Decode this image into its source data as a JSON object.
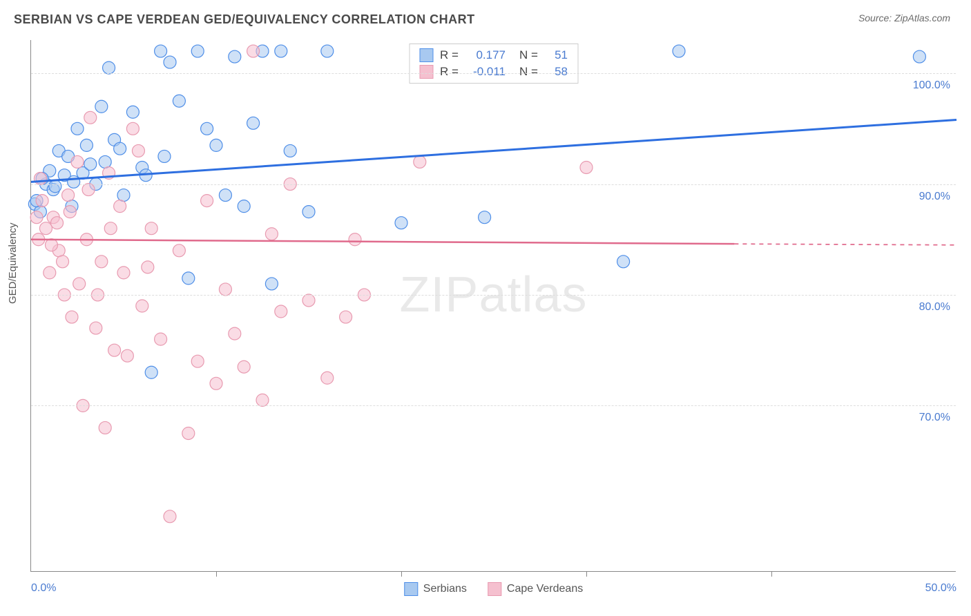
{
  "title": "SERBIAN VS CAPE VERDEAN GED/EQUIVALENCY CORRELATION CHART",
  "source": "Source: ZipAtlas.com",
  "ylabel": "GED/Equivalency",
  "watermark_a": "ZIP",
  "watermark_b": "atlas",
  "chart": {
    "type": "scatter",
    "xlim": [
      0,
      50
    ],
    "ylim": [
      55,
      103
    ],
    "xtick_labels": [
      "0.0%",
      "50.0%"
    ],
    "xtick_positions": [
      0,
      50
    ],
    "xtick_minor": [
      10,
      20,
      30,
      40
    ],
    "ytick_labels": [
      "70.0%",
      "80.0%",
      "90.0%",
      "100.0%"
    ],
    "ytick_positions": [
      70,
      80,
      90,
      100
    ],
    "grid_color": "#dddddd",
    "axis_color": "#888888",
    "background_color": "#ffffff",
    "tick_label_color": "#4a7bd0",
    "series": [
      {
        "name": "Serbians",
        "stroke": "#4e8ee8",
        "fill": "#a8c9f0",
        "fill_opacity": 0.55,
        "marker_r": 9,
        "R": "0.177",
        "N": "51",
        "trend": {
          "x1": 0,
          "y1": 90.2,
          "x2": 50,
          "y2": 95.8,
          "color": "#2e6fe0",
          "width": 3
        },
        "points": [
          [
            0.2,
            88.2
          ],
          [
            0.5,
            87.5
          ],
          [
            0.8,
            90.0
          ],
          [
            1.0,
            91.2
          ],
          [
            1.2,
            89.5
          ],
          [
            1.5,
            93.0
          ],
          [
            1.8,
            90.8
          ],
          [
            2.0,
            92.5
          ],
          [
            2.2,
            88.0
          ],
          [
            2.5,
            95.0
          ],
          [
            2.8,
            91.0
          ],
          [
            3.0,
            93.5
          ],
          [
            3.5,
            90.0
          ],
          [
            3.8,
            97.0
          ],
          [
            4.0,
            92.0
          ],
          [
            4.2,
            100.5
          ],
          [
            4.5,
            94.0
          ],
          [
            5.0,
            89.0
          ],
          [
            5.5,
            96.5
          ],
          [
            6.0,
            91.5
          ],
          [
            6.5,
            73.0
          ],
          [
            7.0,
            102.0
          ],
          [
            7.5,
            101.0
          ],
          [
            8.0,
            97.5
          ],
          [
            8.5,
            81.5
          ],
          [
            9.0,
            102.0
          ],
          [
            9.5,
            95.0
          ],
          [
            10.0,
            93.5
          ],
          [
            10.5,
            89.0
          ],
          [
            11.0,
            101.5
          ],
          [
            11.5,
            88.0
          ],
          [
            12.0,
            95.5
          ],
          [
            12.5,
            102.0
          ],
          [
            13.0,
            81.0
          ],
          [
            13.5,
            102.0
          ],
          [
            14.0,
            93.0
          ],
          [
            15.0,
            87.5
          ],
          [
            16.0,
            102.0
          ],
          [
            20.0,
            86.5
          ],
          [
            24.5,
            87.0
          ],
          [
            35.0,
            102.0
          ],
          [
            32.0,
            83.0
          ],
          [
            48.0,
            101.5
          ],
          [
            0.3,
            88.5
          ],
          [
            0.6,
            90.5
          ],
          [
            1.3,
            89.8
          ],
          [
            2.3,
            90.2
          ],
          [
            3.2,
            91.8
          ],
          [
            4.8,
            93.2
          ],
          [
            6.2,
            90.8
          ],
          [
            7.2,
            92.5
          ]
        ]
      },
      {
        "name": "Cape Verdeans",
        "stroke": "#e89ab0",
        "fill": "#f5c0cf",
        "fill_opacity": 0.55,
        "marker_r": 9,
        "R": "-0.011",
        "N": "58",
        "trend": {
          "x1": 0,
          "y1": 85.0,
          "x2": 38,
          "y2": 84.6,
          "color": "#e06a8c",
          "width": 2.5,
          "dash_from": 38,
          "dash_to": 50
        },
        "points": [
          [
            0.5,
            90.5
          ],
          [
            0.8,
            86.0
          ],
          [
            1.0,
            82.0
          ],
          [
            1.2,
            87.0
          ],
          [
            1.5,
            84.0
          ],
          [
            1.8,
            80.0
          ],
          [
            2.0,
            89.0
          ],
          [
            2.2,
            78.0
          ],
          [
            2.5,
            92.0
          ],
          [
            2.8,
            70.0
          ],
          [
            3.0,
            85.0
          ],
          [
            3.2,
            96.0
          ],
          [
            3.5,
            77.0
          ],
          [
            3.8,
            83.0
          ],
          [
            4.0,
            68.0
          ],
          [
            4.2,
            91.0
          ],
          [
            4.5,
            75.0
          ],
          [
            4.8,
            88.0
          ],
          [
            5.0,
            82.0
          ],
          [
            5.5,
            95.0
          ],
          [
            5.8,
            93.0
          ],
          [
            6.0,
            79.0
          ],
          [
            6.5,
            86.0
          ],
          [
            7.0,
            76.0
          ],
          [
            7.5,
            60.0
          ],
          [
            8.0,
            84.0
          ],
          [
            8.5,
            67.5
          ],
          [
            9.0,
            74.0
          ],
          [
            9.5,
            88.5
          ],
          [
            10.0,
            72.0
          ],
          [
            10.5,
            80.5
          ],
          [
            11.0,
            76.5
          ],
          [
            11.5,
            73.5
          ],
          [
            12.0,
            102.0
          ],
          [
            12.5,
            70.5
          ],
          [
            13.0,
            85.5
          ],
          [
            13.5,
            78.5
          ],
          [
            14.0,
            90.0
          ],
          [
            15.0,
            79.5
          ],
          [
            16.0,
            72.5
          ],
          [
            17.0,
            78.0
          ],
          [
            17.5,
            85.0
          ],
          [
            18.0,
            80.0
          ],
          [
            21.0,
            92.0
          ],
          [
            30.0,
            91.5
          ],
          [
            0.3,
            87.0
          ],
          [
            0.4,
            85.0
          ],
          [
            0.6,
            88.5
          ],
          [
            1.1,
            84.5
          ],
          [
            1.4,
            86.5
          ],
          [
            1.7,
            83.0
          ],
          [
            2.1,
            87.5
          ],
          [
            2.6,
            81.0
          ],
          [
            3.1,
            89.5
          ],
          [
            3.6,
            80.0
          ],
          [
            4.3,
            86.0
          ],
          [
            5.2,
            74.5
          ],
          [
            6.3,
            82.5
          ]
        ]
      }
    ]
  },
  "legend_top": {
    "rows": [
      {
        "swatch_fill": "#a8c9f0",
        "swatch_stroke": "#4e8ee8",
        "r_label": "R = ",
        "r_val": "0.177",
        "n_label": "N = ",
        "n_val": "51"
      },
      {
        "swatch_fill": "#f5c0cf",
        "swatch_stroke": "#e89ab0",
        "r_label": "R = ",
        "r_val": "-0.011",
        "n_label": "N = ",
        "n_val": "58"
      }
    ]
  },
  "legend_bottom": {
    "items": [
      {
        "swatch_fill": "#a8c9f0",
        "swatch_stroke": "#4e8ee8",
        "label": "Serbians"
      },
      {
        "swatch_fill": "#f5c0cf",
        "swatch_stroke": "#e89ab0",
        "label": "Cape Verdeans"
      }
    ]
  }
}
